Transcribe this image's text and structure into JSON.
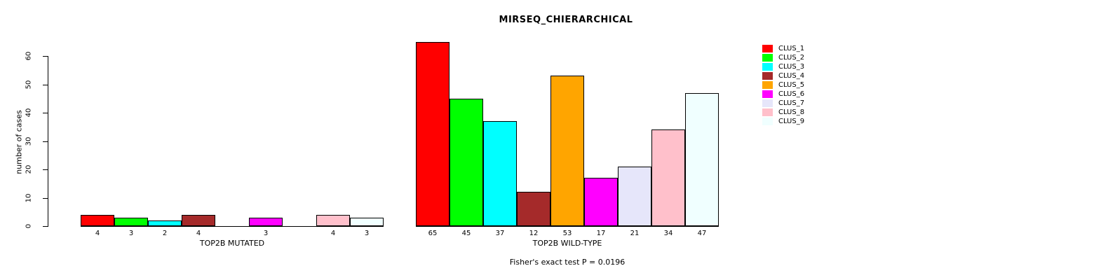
{
  "title": "MIRSEQ_CHIERARCHICAL",
  "footer": "Fisher's exact test P = 0.0196",
  "legend": [
    {
      "label": "CLUS_1",
      "color": "#FF0000"
    },
    {
      "label": "CLUS_2",
      "color": "#00FF00"
    },
    {
      "label": "CLUS_3",
      "color": "#00FFFF"
    },
    {
      "label": "CLUS_4",
      "color": "#A52A2A"
    },
    {
      "label": "CLUS_5",
      "color": "#FFA500"
    },
    {
      "label": "CLUS_6",
      "color": "#FF00FF"
    },
    {
      "label": "CLUS_7",
      "color": "#E6E6FA"
    },
    {
      "label": "CLUS_8",
      "color": "#FFC0CB"
    },
    {
      "label": "CLUS_9",
      "color": "#F0FFFF"
    }
  ],
  "chart_data": {
    "type": "bar",
    "title": "MIRSEQ_CHIERARCHICAL",
    "ylabel": "number of cases",
    "xlabel": "",
    "categories": [
      "CLUS_1",
      "CLUS_2",
      "CLUS_3",
      "CLUS_4",
      "CLUS_5",
      "CLUS_6",
      "CLUS_7",
      "CLUS_8",
      "CLUS_9"
    ],
    "colors": [
      "#FF0000",
      "#00FF00",
      "#00FFFF",
      "#A52A2A",
      "#FFA500",
      "#FF00FF",
      "#E6E6FA",
      "#FFC0CB",
      "#F0FFFF"
    ],
    "groups": [
      {
        "label": "TOP2B MUTATED",
        "values": [
          4,
          3,
          2,
          4,
          0,
          3,
          0,
          4,
          3
        ]
      },
      {
        "label": "TOP2B WILD-TYPE",
        "values": [
          65,
          45,
          37,
          12,
          53,
          17,
          21,
          34,
          47
        ]
      }
    ],
    "bar_value_labels": "shown below each nonzero bar",
    "yticks": [
      0,
      10,
      20,
      30,
      40,
      50,
      60
    ],
    "ylim": [
      0,
      66
    ],
    "grid": false,
    "legend_position": "top-right",
    "annotation": "Fisher's exact test P = 0.0196"
  }
}
